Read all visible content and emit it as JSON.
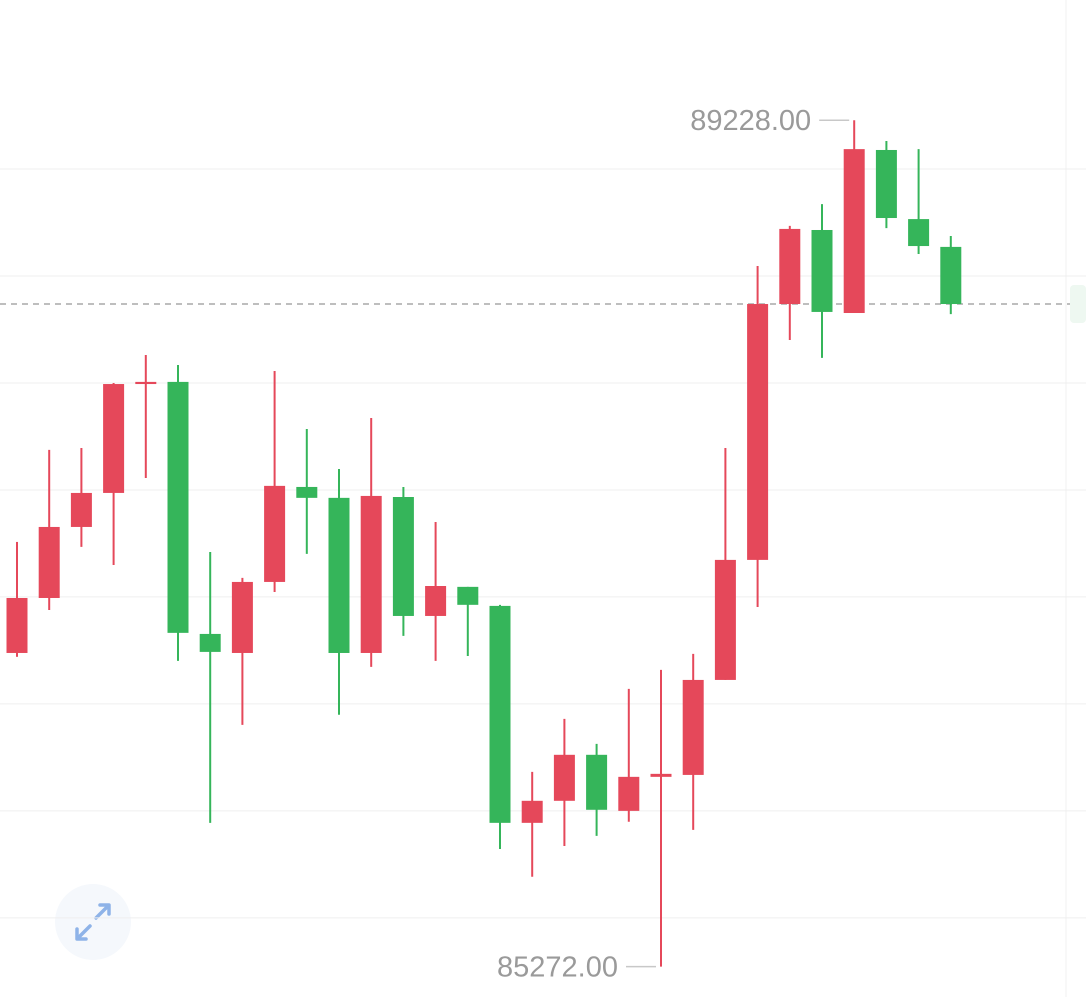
{
  "chart_data": {
    "type": "candlestick",
    "open": [
      86738,
      86995,
      87327,
      87486,
      87995,
      88005,
      86827,
      86738,
      87070,
      87514,
      87463,
      86738,
      87467,
      86911,
      87047,
      86958,
      85944,
      86047,
      86262,
      86000,
      86159,
      86168,
      86612,
      87173,
      88369,
      88715,
      88327,
      89089,
      88766,
      88636
    ],
    "high": [
      87257,
      87687,
      87696,
      88000,
      88131,
      88084,
      87210,
      87089,
      88056,
      87785,
      87598,
      87836,
      87514,
      87350,
      87047,
      86963,
      86182,
      86430,
      86313,
      86570,
      86659,
      86734,
      87696,
      88547,
      88734,
      88836,
      89228,
      89131,
      89093,
      88687
    ],
    "low": [
      86720,
      86939,
      87234,
      87149,
      87556,
      86701,
      85944,
      86402,
      87023,
      87201,
      86449,
      86673,
      86818,
      86701,
      86724,
      85822,
      85692,
      85836,
      85883,
      85949,
      85272,
      85911,
      86612,
      86953,
      88201,
      88117,
      88327,
      88724,
      88603,
      88322
    ],
    "close": [
      86995,
      87327,
      87486,
      87995,
      88005,
      86832,
      86743,
      87070,
      87519,
      87463,
      86738,
      87472,
      86911,
      87051,
      86963,
      85944,
      86047,
      86262,
      86005,
      86159,
      86173,
      86612,
      87173,
      88369,
      88720,
      88332,
      89093,
      88771,
      88640,
      88369
    ],
    "up_color": "#e5485a",
    "down_color": "#35b55a",
    "last_price": 88369,
    "high_label": {
      "value": 89228,
      "label": "89228.00"
    },
    "low_label": {
      "value": 85272,
      "label": "85272.00"
    },
    "ylim": [
      85130,
      89790
    ],
    "yticks": [
      85500,
      86000,
      86500,
      87000,
      87500,
      88000,
      88500,
      89000
    ],
    "grid": true
  }
}
